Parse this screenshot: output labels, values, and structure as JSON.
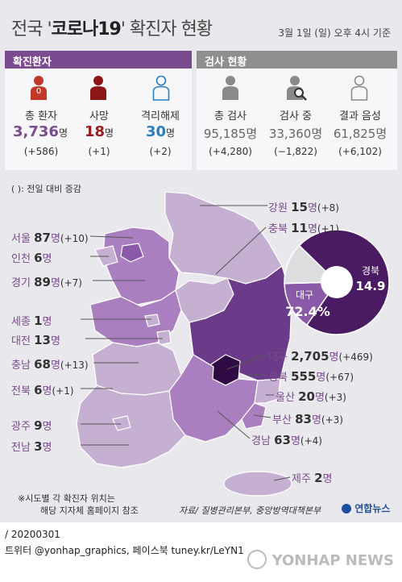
{
  "header": {
    "title_prefix": "전국 '",
    "title_bold": "코로나19",
    "title_suffix": "' 확진자 현황",
    "date": "3월 1일 (일) 오후 4시 기준"
  },
  "patients": {
    "heading": "확진환자",
    "total": {
      "label": "총 환자",
      "value": "3,736",
      "unit": "명",
      "delta": "(+586)"
    },
    "deaths": {
      "label": "사망",
      "value": "18",
      "unit": "명",
      "delta": "(+1)",
      "icon_text": "0"
    },
    "released": {
      "label": "격리해제",
      "value": "30",
      "unit": "명",
      "delta": "(+2)"
    }
  },
  "tests": {
    "heading": "검사 현황",
    "total": {
      "label": "총 검사",
      "value": "95,185명",
      "delta": "(+4,280)"
    },
    "testing": {
      "label": "검사 중",
      "value": "33,360명",
      "delta": "(−1,822)"
    },
    "negative": {
      "label": "결과 음성",
      "value": "61,825명",
      "delta": "(+6,102)"
    }
  },
  "legend_note": "( ): 전일 대비 증감",
  "map_note_1": "※시도별 각 확진자 위치는",
  "map_note_2": "해당 지자체 홈페이지 참조",
  "source": "자료/ 질병관리본부, 중앙방역대책본부",
  "logo": "연합뉴스",
  "bottom_line_1": "/ 20200301",
  "bottom_line_2": "트위터 @yonhap_graphics, 페이스북 tuney.kr/LeYN1",
  "watermark": "YONHAP NEWS",
  "colors": {
    "purple": "#7a4c8f",
    "dark_purple": "#4a1a63",
    "red": "#a01c1c",
    "blue": "#2a7fc1",
    "grey_head": "#8f8f8f"
  },
  "chart_data": {
    "type": "pie",
    "title": "",
    "slices": [
      {
        "name": "대구",
        "value": 72.4
      },
      {
        "name": "경북",
        "value": 14.9
      },
      {
        "name": "",
        "value": 12.7
      }
    ],
    "slice_colors": [
      "#4a1a63",
      "#8a5aa8",
      "#dddcde"
    ],
    "label_daegu": "대구",
    "label_daegu_value": "72.4",
    "label_daegu_unit": "%",
    "label_gb": "경북",
    "label_gb_value": "14.9"
  },
  "regions": [
    {
      "name": "강원",
      "count": "15",
      "unit": "명",
      "delta": "(+8)"
    },
    {
      "name": "충북",
      "count": "11",
      "unit": "명",
      "delta": "(+1)"
    },
    {
      "name": "서울",
      "count": "87",
      "unit": "명",
      "delta": "(+10)"
    },
    {
      "name": "인천",
      "count": "6",
      "unit": "명",
      "delta": ""
    },
    {
      "name": "경기",
      "count": "89",
      "unit": "명",
      "delta": "(+7)"
    },
    {
      "name": "세종",
      "count": "1",
      "unit": "명",
      "delta": ""
    },
    {
      "name": "대전",
      "count": "13",
      "unit": "명",
      "delta": ""
    },
    {
      "name": "충남",
      "count": "68",
      "unit": "명",
      "delta": "(+13)"
    },
    {
      "name": "전북",
      "count": "6",
      "unit": "명",
      "delta": "(+1)"
    },
    {
      "name": "광주",
      "count": "9",
      "unit": "명",
      "delta": ""
    },
    {
      "name": "전남",
      "count": "3",
      "unit": "명",
      "delta": ""
    },
    {
      "name": "대구",
      "count": "2,705",
      "unit": "명",
      "delta": "(+469)"
    },
    {
      "name": "경북",
      "count": "555",
      "unit": "명",
      "delta": "(+67)"
    },
    {
      "name": "울산",
      "count": "20",
      "unit": "명",
      "delta": "(+3)"
    },
    {
      "name": "부산",
      "count": "83",
      "unit": "명",
      "delta": "(+3)"
    },
    {
      "name": "경남",
      "count": "63",
      "unit": "명",
      "delta": "(+4)"
    },
    {
      "name": "제주",
      "count": "2",
      "unit": "명",
      "delta": ""
    }
  ]
}
